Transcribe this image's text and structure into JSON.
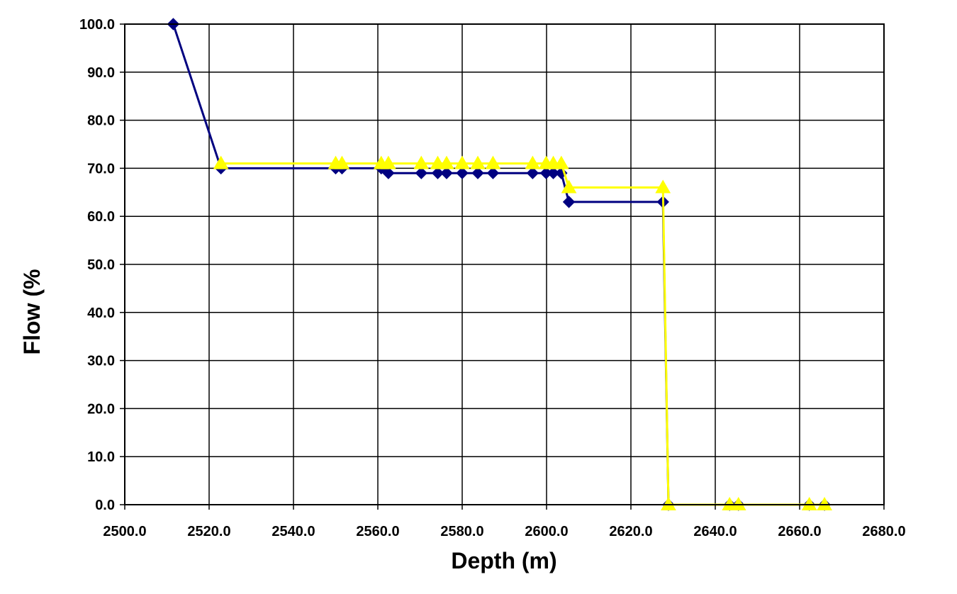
{
  "chart_data": {
    "type": "line",
    "xlabel": "Depth (m)",
    "ylabel": "Flow (%",
    "xlim": [
      2500,
      2680
    ],
    "ylim": [
      0,
      100
    ],
    "x_ticks": [
      2500,
      2520,
      2540,
      2560,
      2580,
      2600,
      2620,
      2640,
      2660,
      2680
    ],
    "y_ticks": [
      0,
      10,
      20,
      30,
      40,
      50,
      60,
      70,
      80,
      90,
      100
    ],
    "x_tick_labels": [
      "2500.0",
      "2520.0",
      "2540.0",
      "2560.0",
      "2580.0",
      "2600.0",
      "2620.0",
      "2640.0",
      "2660.0",
      "2680.0"
    ],
    "y_tick_labels": [
      "0.0",
      "10.0",
      "20.0",
      "30.0",
      "40.0",
      "50.0",
      "60.0",
      "70.0",
      "80.0",
      "90.0",
      "100.0"
    ],
    "grid": true,
    "series": [
      {
        "marker": "diamond",
        "color": "#000080",
        "points": [
          [
            2511.5,
            100
          ],
          [
            2522.8,
            70
          ],
          [
            2550.0,
            70
          ],
          [
            2551.5,
            70
          ],
          [
            2560.8,
            70
          ],
          [
            2562.5,
            69
          ],
          [
            2570.3,
            69
          ],
          [
            2574.2,
            69
          ],
          [
            2576.3,
            69
          ],
          [
            2580.0,
            69
          ],
          [
            2583.7,
            69
          ],
          [
            2587.3,
            69
          ],
          [
            2596.7,
            69
          ],
          [
            2599.9,
            69
          ],
          [
            2601.6,
            69
          ],
          [
            2603.5,
            69
          ],
          [
            2605.3,
            63
          ],
          [
            2627.6,
            63
          ],
          [
            2628.9,
            0
          ],
          [
            2643.4,
            0
          ],
          [
            2645.5,
            0
          ],
          [
            2662.3,
            0
          ],
          [
            2665.9,
            0
          ]
        ]
      },
      {
        "marker": "triangle",
        "color": "#ffff00",
        "points": [
          [
            2522.8,
            71
          ],
          [
            2550.0,
            71
          ],
          [
            2551.5,
            71
          ],
          [
            2560.8,
            71
          ],
          [
            2562.5,
            71
          ],
          [
            2570.3,
            71
          ],
          [
            2574.2,
            71
          ],
          [
            2576.3,
            71
          ],
          [
            2580.0,
            71
          ],
          [
            2583.7,
            71
          ],
          [
            2587.3,
            71
          ],
          [
            2596.7,
            71
          ],
          [
            2599.9,
            71
          ],
          [
            2601.6,
            71
          ],
          [
            2603.5,
            71
          ],
          [
            2605.3,
            66
          ],
          [
            2627.6,
            66
          ],
          [
            2628.9,
            0
          ],
          [
            2643.4,
            0
          ],
          [
            2645.5,
            0
          ],
          [
            2662.3,
            0
          ],
          [
            2665.9,
            0
          ]
        ]
      }
    ]
  }
}
